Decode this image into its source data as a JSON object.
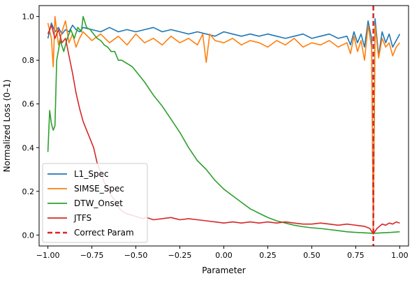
{
  "chart_data": {
    "type": "line",
    "xlabel": "Parameter",
    "ylabel": "Normalized Loss (0–1)",
    "xlim": [
      -1.05,
      1.05
    ],
    "ylim": [
      -0.05,
      1.05
    ],
    "xticks": [
      -1.0,
      -0.75,
      -0.5,
      -0.25,
      0.0,
      0.25,
      0.5,
      0.75,
      1.0
    ],
    "xtick_labels": [
      "−1.00",
      "−0.75",
      "−0.50",
      "−0.25",
      "0.00",
      "0.25",
      "0.50",
      "0.75",
      "1.00"
    ],
    "yticks": [
      0.0,
      0.2,
      0.4,
      0.6,
      0.8,
      1.0
    ],
    "ytick_labels": [
      "0.0",
      "0.2",
      "0.4",
      "0.6",
      "0.8",
      "1.0"
    ],
    "grid": false,
    "legend_position": "lower-left",
    "series": [
      {
        "name": "L1_Spec",
        "color": "#1f77b4",
        "x": [
          -1.0,
          -0.98,
          -0.96,
          -0.94,
          -0.92,
          -0.9,
          -0.88,
          -0.86,
          -0.84,
          -0.82,
          -0.8,
          -0.75,
          -0.7,
          -0.65,
          -0.6,
          -0.55,
          -0.5,
          -0.45,
          -0.4,
          -0.35,
          -0.3,
          -0.25,
          -0.2,
          -0.15,
          -0.1,
          -0.05,
          0.0,
          0.05,
          0.1,
          0.15,
          0.2,
          0.25,
          0.3,
          0.35,
          0.4,
          0.45,
          0.5,
          0.55,
          0.6,
          0.65,
          0.7,
          0.72,
          0.74,
          0.76,
          0.78,
          0.8,
          0.82,
          0.84,
          0.85,
          0.86,
          0.88,
          0.9,
          0.92,
          0.94,
          0.96,
          0.98,
          1.0
        ],
        "y": [
          0.9,
          0.97,
          0.93,
          0.95,
          0.92,
          0.94,
          0.93,
          0.96,
          0.94,
          0.93,
          0.95,
          0.94,
          0.93,
          0.95,
          0.93,
          0.94,
          0.93,
          0.94,
          0.95,
          0.93,
          0.94,
          0.93,
          0.92,
          0.93,
          0.92,
          0.91,
          0.93,
          0.92,
          0.91,
          0.92,
          0.91,
          0.92,
          0.91,
          0.9,
          0.91,
          0.92,
          0.9,
          0.91,
          0.92,
          0.9,
          0.91,
          0.87,
          0.93,
          0.88,
          0.92,
          0.86,
          0.98,
          0.9,
          0.03,
          0.99,
          0.82,
          0.93,
          0.88,
          0.92,
          0.86,
          0.89,
          0.92
        ]
      },
      {
        "name": "SIMSE_Spec",
        "color": "#ff7f0e",
        "x": [
          -1.0,
          -0.98,
          -0.97,
          -0.96,
          -0.94,
          -0.92,
          -0.9,
          -0.88,
          -0.86,
          -0.84,
          -0.82,
          -0.8,
          -0.75,
          -0.7,
          -0.65,
          -0.6,
          -0.55,
          -0.5,
          -0.45,
          -0.4,
          -0.35,
          -0.3,
          -0.25,
          -0.2,
          -0.15,
          -0.12,
          -0.1,
          -0.08,
          -0.05,
          0.0,
          0.05,
          0.1,
          0.15,
          0.2,
          0.25,
          0.3,
          0.35,
          0.4,
          0.45,
          0.5,
          0.55,
          0.6,
          0.65,
          0.7,
          0.72,
          0.74,
          0.76,
          0.78,
          0.8,
          0.82,
          0.84,
          0.85,
          0.86,
          0.88,
          0.9,
          0.92,
          0.94,
          0.96,
          0.98,
          1.0
        ],
        "y": [
          0.97,
          0.9,
          0.77,
          1.0,
          0.87,
          0.93,
          0.98,
          0.88,
          0.92,
          0.86,
          0.9,
          0.93,
          0.89,
          0.92,
          0.88,
          0.91,
          0.87,
          0.92,
          0.88,
          0.9,
          0.87,
          0.91,
          0.88,
          0.9,
          0.87,
          0.92,
          0.79,
          0.92,
          0.89,
          0.88,
          0.9,
          0.87,
          0.89,
          0.88,
          0.86,
          0.89,
          0.87,
          0.9,
          0.86,
          0.88,
          0.87,
          0.89,
          0.86,
          0.88,
          0.83,
          0.91,
          0.84,
          0.89,
          0.8,
          0.96,
          0.86,
          0.02,
          0.96,
          0.81,
          0.9,
          0.86,
          0.88,
          0.82,
          0.86,
          0.88
        ]
      },
      {
        "name": "DTW_Onset",
        "color": "#2ca02c",
        "x": [
          -1.0,
          -0.99,
          -0.98,
          -0.97,
          -0.96,
          -0.95,
          -0.93,
          -0.91,
          -0.89,
          -0.87,
          -0.85,
          -0.83,
          -0.81,
          -0.8,
          -0.78,
          -0.76,
          -0.74,
          -0.72,
          -0.7,
          -0.68,
          -0.66,
          -0.64,
          -0.62,
          -0.6,
          -0.58,
          -0.56,
          -0.54,
          -0.52,
          -0.5,
          -0.45,
          -0.4,
          -0.35,
          -0.3,
          -0.25,
          -0.2,
          -0.15,
          -0.1,
          -0.05,
          0.0,
          0.05,
          0.1,
          0.15,
          0.2,
          0.25,
          0.3,
          0.35,
          0.4,
          0.45,
          0.5,
          0.55,
          0.6,
          0.65,
          0.7,
          0.75,
          0.8,
          0.85,
          0.9,
          0.95,
          1.0
        ],
        "y": [
          0.38,
          0.57,
          0.51,
          0.48,
          0.5,
          0.8,
          0.89,
          0.84,
          0.9,
          0.94,
          0.9,
          0.95,
          0.93,
          1.0,
          0.95,
          0.94,
          0.92,
          0.9,
          0.89,
          0.87,
          0.86,
          0.84,
          0.84,
          0.8,
          0.8,
          0.79,
          0.78,
          0.77,
          0.75,
          0.7,
          0.64,
          0.59,
          0.53,
          0.47,
          0.4,
          0.34,
          0.3,
          0.25,
          0.21,
          0.18,
          0.15,
          0.12,
          0.1,
          0.08,
          0.065,
          0.055,
          0.045,
          0.038,
          0.033,
          0.03,
          0.025,
          0.02,
          0.015,
          0.012,
          0.01,
          0.008,
          0.01,
          0.012,
          0.015
        ]
      },
      {
        "name": "JTFS",
        "color": "#d62728",
        "x": [
          -1.0,
          -0.98,
          -0.96,
          -0.94,
          -0.92,
          -0.9,
          -0.88,
          -0.86,
          -0.84,
          -0.82,
          -0.8,
          -0.78,
          -0.76,
          -0.74,
          -0.72,
          -0.7,
          -0.68,
          -0.66,
          -0.64,
          -0.62,
          -0.6,
          -0.58,
          -0.56,
          -0.54,
          -0.52,
          -0.5,
          -0.48,
          -0.46,
          -0.44,
          -0.42,
          -0.4,
          -0.35,
          -0.3,
          -0.25,
          -0.2,
          -0.15,
          -0.1,
          -0.05,
          0.0,
          0.05,
          0.1,
          0.15,
          0.2,
          0.25,
          0.3,
          0.35,
          0.4,
          0.45,
          0.5,
          0.55,
          0.6,
          0.65,
          0.7,
          0.75,
          0.8,
          0.83,
          0.85,
          0.87,
          0.9,
          0.92,
          0.94,
          0.96,
          0.98,
          1.0
        ],
        "y": [
          0.92,
          0.96,
          0.9,
          0.94,
          0.88,
          0.9,
          0.82,
          0.74,
          0.65,
          0.58,
          0.52,
          0.48,
          0.44,
          0.4,
          0.33,
          0.29,
          0.24,
          0.22,
          0.18,
          0.16,
          0.13,
          0.11,
          0.1,
          0.095,
          0.09,
          0.085,
          0.08,
          0.075,
          0.08,
          0.075,
          0.07,
          0.075,
          0.08,
          0.07,
          0.075,
          0.07,
          0.065,
          0.06,
          0.055,
          0.06,
          0.055,
          0.06,
          0.055,
          0.06,
          0.055,
          0.06,
          0.055,
          0.05,
          0.05,
          0.055,
          0.05,
          0.045,
          0.05,
          0.045,
          0.04,
          0.03,
          0.005,
          0.03,
          0.05,
          0.045,
          0.055,
          0.05,
          0.06,
          0.055
        ]
      },
      {
        "name": "Correct Param",
        "color": "#d62728",
        "dashed": true,
        "vline": 0.85
      }
    ]
  }
}
